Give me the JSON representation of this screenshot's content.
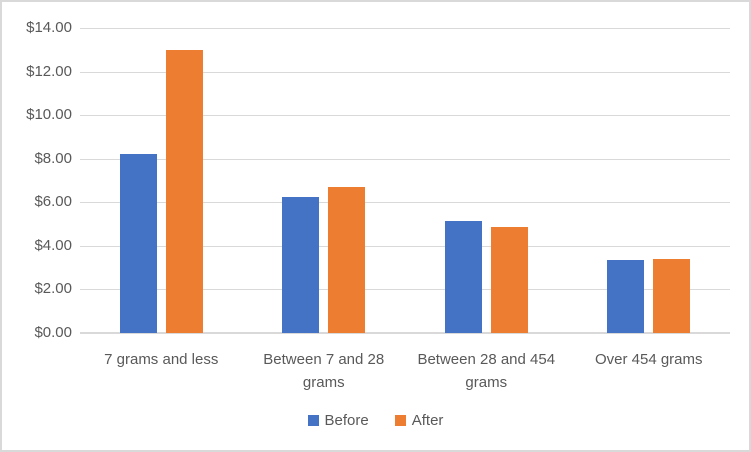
{
  "chart_data": {
    "type": "bar",
    "title": "",
    "xlabel": "",
    "ylabel": "",
    "categories": [
      "7 grams and less",
      "Between 7 and 28 grams",
      "Between 28 and 454 grams",
      "Over 454 grams"
    ],
    "series": [
      {
        "name": "Before",
        "color": "#4472C4",
        "values": [
          8.2,
          6.25,
          5.15,
          3.35
        ]
      },
      {
        "name": "After",
        "color": "#ED7D31",
        "values": [
          13.0,
          6.7,
          4.85,
          3.4
        ]
      }
    ],
    "ylim": [
      0,
      14
    ],
    "y_tick_step": 2,
    "y_tick_labels": [
      "$0.00",
      "$2.00",
      "$4.00",
      "$6.00",
      "$8.00",
      "$10.00",
      "$12.00",
      "$14.00"
    ],
    "grid": true,
    "legend_position": "bottom"
  },
  "colors": {
    "text": "#595959",
    "gridline": "#D9D9D9",
    "frame_border": "#D9D9D9",
    "background": "#FFFFFF"
  }
}
